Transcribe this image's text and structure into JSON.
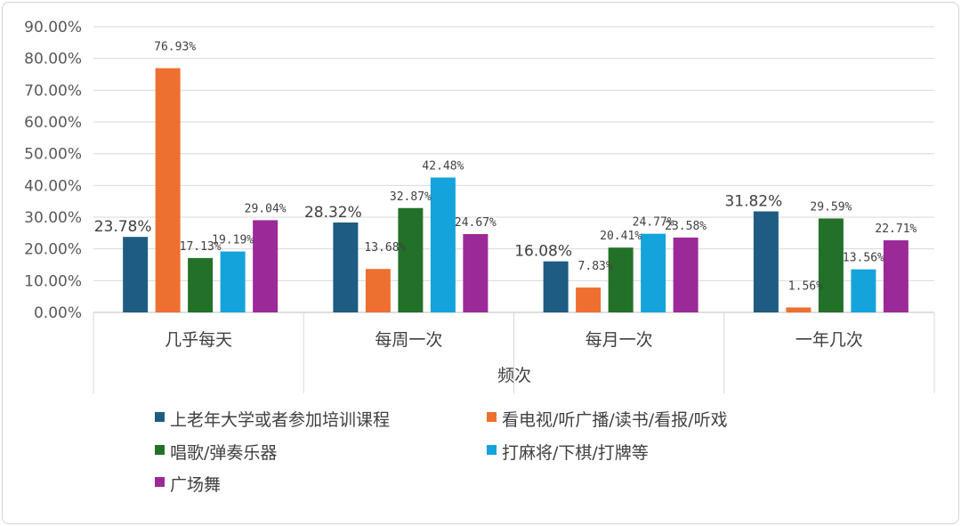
{
  "chart_data": {
    "type": "bar",
    "title": "",
    "xlabel": "频次",
    "ylabel": "",
    "ylim": [
      0,
      90
    ],
    "yticks": [
      "0.00%",
      "10.00%",
      "20.00%",
      "30.00%",
      "40.00%",
      "50.00%",
      "60.00%",
      "70.00%",
      "80.00%",
      "90.00%"
    ],
    "categories": [
      "几乎每天",
      "每周一次",
      "每月一次",
      "一年几次"
    ],
    "series": [
      {
        "name": "上老年大学或者参加培训课程",
        "color": "#1f5c83",
        "values": [
          23.78,
          28.32,
          16.08,
          31.82
        ],
        "labels": [
          "23.78%",
          "28.32%",
          "16.08%",
          "31.82%"
        ]
      },
      {
        "name": "看电视/听广播/读书/看报/听戏",
        "color": "#ed7031",
        "values": [
          76.93,
          13.68,
          7.83,
          1.56
        ],
        "labels": [
          "76.93%",
          "13.68%",
          "7.83%",
          "1.56%"
        ]
      },
      {
        "name": "唱歌/弹奏乐器",
        "color": "#237128",
        "values": [
          17.13,
          32.87,
          20.41,
          29.59
        ],
        "labels": [
          "17.13%",
          "32.87%",
          "20.41%",
          "29.59%"
        ]
      },
      {
        "name": "打麻将/下棋/打牌等",
        "color": "#14a3db",
        "values": [
          19.19,
          42.48,
          24.77,
          13.56
        ],
        "labels": [
          "19.19%",
          "42.48%",
          "24.77%",
          "13.56%"
        ]
      },
      {
        "name": "广场舞",
        "color": "#9b2a98",
        "values": [
          29.04,
          24.67,
          23.58,
          22.71
        ],
        "labels": [
          "29.04%",
          "24.67%",
          "23.58%",
          "22.71%"
        ]
      }
    ],
    "grid": true,
    "legend": "bottom"
  }
}
